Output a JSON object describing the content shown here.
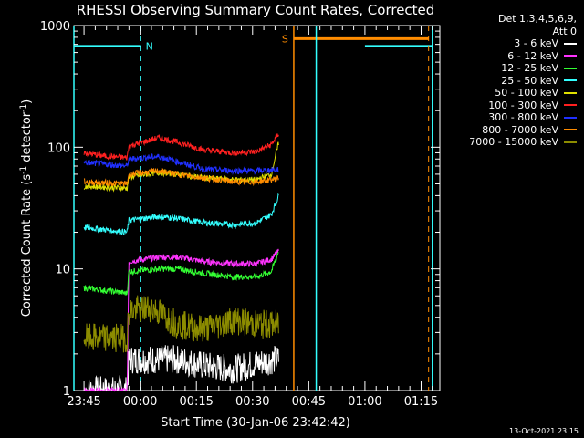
{
  "chart_data": {
    "type": "line",
    "title": "RHESSI Observing Summary Count Rates, Corrected",
    "xlabel": "Start Time (30-Jan-06 23:42:42)",
    "ylabel_main": "Corrected Count Rate (s",
    "ylabel_sup1": "-1",
    "ylabel_mid": " detector",
    "ylabel_sup2": "-1",
    "ylabel_end": ")",
    "yscale": "log",
    "ylim": [
      1,
      1000
    ],
    "xlim_minutes": [
      -2.7,
      95
    ],
    "x_tick_labels": [
      "23:45",
      "00:00",
      "00:15",
      "00:30",
      "00:45",
      "01:00",
      "01:15"
    ],
    "x_tick_minutes": [
      0,
      15,
      30,
      45,
      60,
      75,
      90
    ],
    "y_tick_labels": [
      "1",
      "10",
      "100",
      "1000"
    ],
    "y_tick_values": [
      1,
      10,
      100,
      1000
    ],
    "legend_title": "Det 1,3,4,5,6,9,",
    "legend_sub": "Att 0",
    "series": [
      {
        "name": "3 - 6 keV",
        "color": "#ffffff",
        "x": [
          0.5,
          11.5,
          12,
          25,
          32,
          40,
          47,
          51,
          52
        ],
        "y": [
          1,
          1,
          1.8,
          1.8,
          1.6,
          1.5,
          1.7,
          1.8,
          1.8
        ]
      },
      {
        "name": "6 - 12 keV",
        "color": "#ff33ff",
        "x": [
          0,
          11.5,
          12,
          20,
          25,
          32,
          40,
          46,
          50,
          52
        ],
        "y": [
          1,
          1,
          11.5,
          12.5,
          12.5,
          11.5,
          11,
          11,
          12,
          14
        ]
      },
      {
        "name": "12 - 25 keV",
        "color": "#33ff33",
        "x": [
          0,
          11.5,
          12,
          20,
          25,
          32,
          40,
          46,
          50,
          52
        ],
        "y": [
          7,
          6.3,
          9.5,
          10,
          10,
          9.2,
          8.6,
          8.6,
          9.5,
          14
        ]
      },
      {
        "name": "25 - 50 keV",
        "color": "#33ffff",
        "x": [
          0,
          11.5,
          12,
          20,
          25,
          32,
          40,
          46,
          50,
          52
        ],
        "y": [
          22,
          20,
          25,
          27,
          26,
          24,
          23,
          24,
          28,
          40
        ]
      },
      {
        "name": "50 - 100 keV",
        "color": "#e0e000",
        "x": [
          0,
          11.5,
          12,
          20,
          25,
          32,
          40,
          46,
          50,
          52
        ],
        "y": [
          48,
          46,
          57,
          62,
          60,
          56,
          54,
          54,
          60,
          110
        ]
      },
      {
        "name": "100 - 300 keV",
        "color": "#ff2020",
        "x": [
          0,
          5,
          11.5,
          12,
          20,
          25,
          32,
          40,
          46,
          50,
          52
        ],
        "y": [
          90,
          85,
          82,
          102,
          120,
          110,
          95,
          90,
          92,
          105,
          130
        ]
      },
      {
        "name": "300 - 800 keV",
        "color": "#2030ff",
        "x": [
          0,
          11.5,
          12,
          20,
          25,
          32,
          40,
          46,
          50,
          52
        ],
        "y": [
          75,
          70,
          80,
          84,
          76,
          66,
          64,
          64,
          65,
          66
        ]
      },
      {
        "name": "800 - 7000 keV",
        "color": "#ff8c00",
        "x": [
          0,
          11.5,
          12,
          20,
          25,
          32,
          40,
          46,
          50,
          52
        ],
        "y": [
          52,
          50,
          60,
          64,
          60,
          56,
          52,
          52,
          54,
          56
        ]
      },
      {
        "name": "7000 - 15000 keV",
        "color": "#8c8c00",
        "x": [
          0,
          11.5,
          12,
          18,
          25,
          32,
          40,
          46,
          52
        ],
        "y": [
          2.7,
          2.7,
          4.5,
          4.8,
          3.5,
          3.2,
          3.8,
          3.5,
          3.5
        ]
      }
    ],
    "annotations": {
      "N_label": "N",
      "S_label": "S",
      "night_intervals": [
        [
          -2.7,
          15
        ],
        [
          75,
          93
        ]
      ],
      "saa_interval": [
        56,
        92
      ],
      "night_level": 680,
      "saa_level": 780,
      "vlines_cyan": [
        -2.7,
        62,
        93
      ],
      "vlines_cyan_dashed": [
        15,
        93
      ],
      "vlines_orange": [
        56
      ],
      "vlines_orange_dashed": [
        92
      ]
    }
  },
  "timestamp": "13-Oct-2021 23:15"
}
